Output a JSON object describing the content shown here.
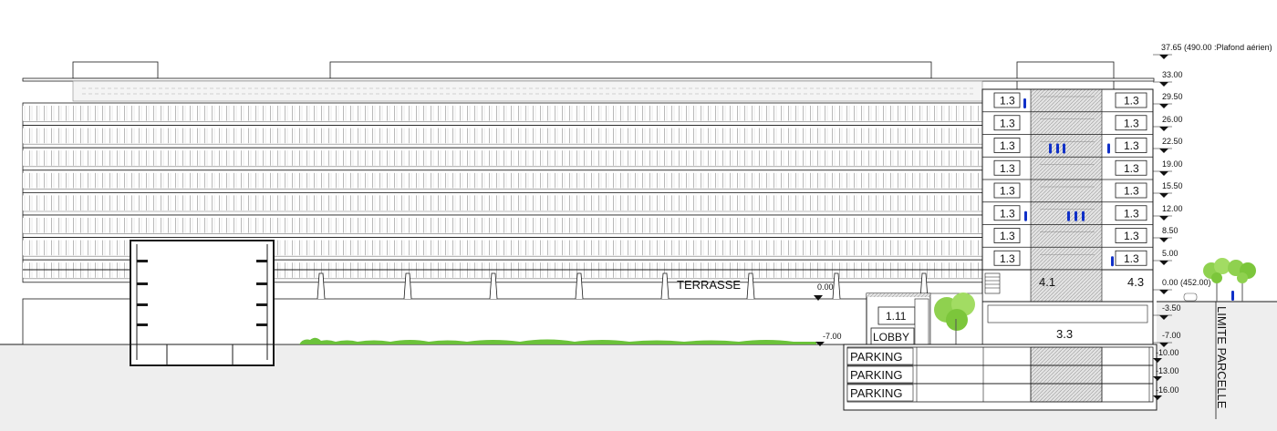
{
  "drawing": {
    "top_annotation": "37.65 (490.00 :Plafond aérien)",
    "tower_levels": [
      "33.00",
      "29.50",
      "26.00",
      "22.50",
      "19.00",
      "15.50",
      "12.00",
      "8.50",
      "5.00",
      "0.00 (452.00)",
      "-3.50",
      "-7.00"
    ],
    "parking_levels": [
      "-10.00",
      "-13.00",
      "-16.00"
    ],
    "tower_room_label": "1.3",
    "ground_room_left": "4.1",
    "ground_room_right": "4.3",
    "basement_room": "3.3",
    "side_room_label": "1.11",
    "lobby_label": "LOBBY",
    "parking_label": "PARKING",
    "terrace_label": "TERRASSE",
    "terrace_level": "0.00",
    "garden_level": "-7.00",
    "boundary_label": "LIMITE PARCELLE"
  },
  "colors": {
    "line": "#1a1a1a",
    "ground": "#eeeeee",
    "greenery": "#6bc23a",
    "tree": "#8fd14f",
    "people": "#1030c8",
    "core_hatch": "#bdbdbd"
  }
}
